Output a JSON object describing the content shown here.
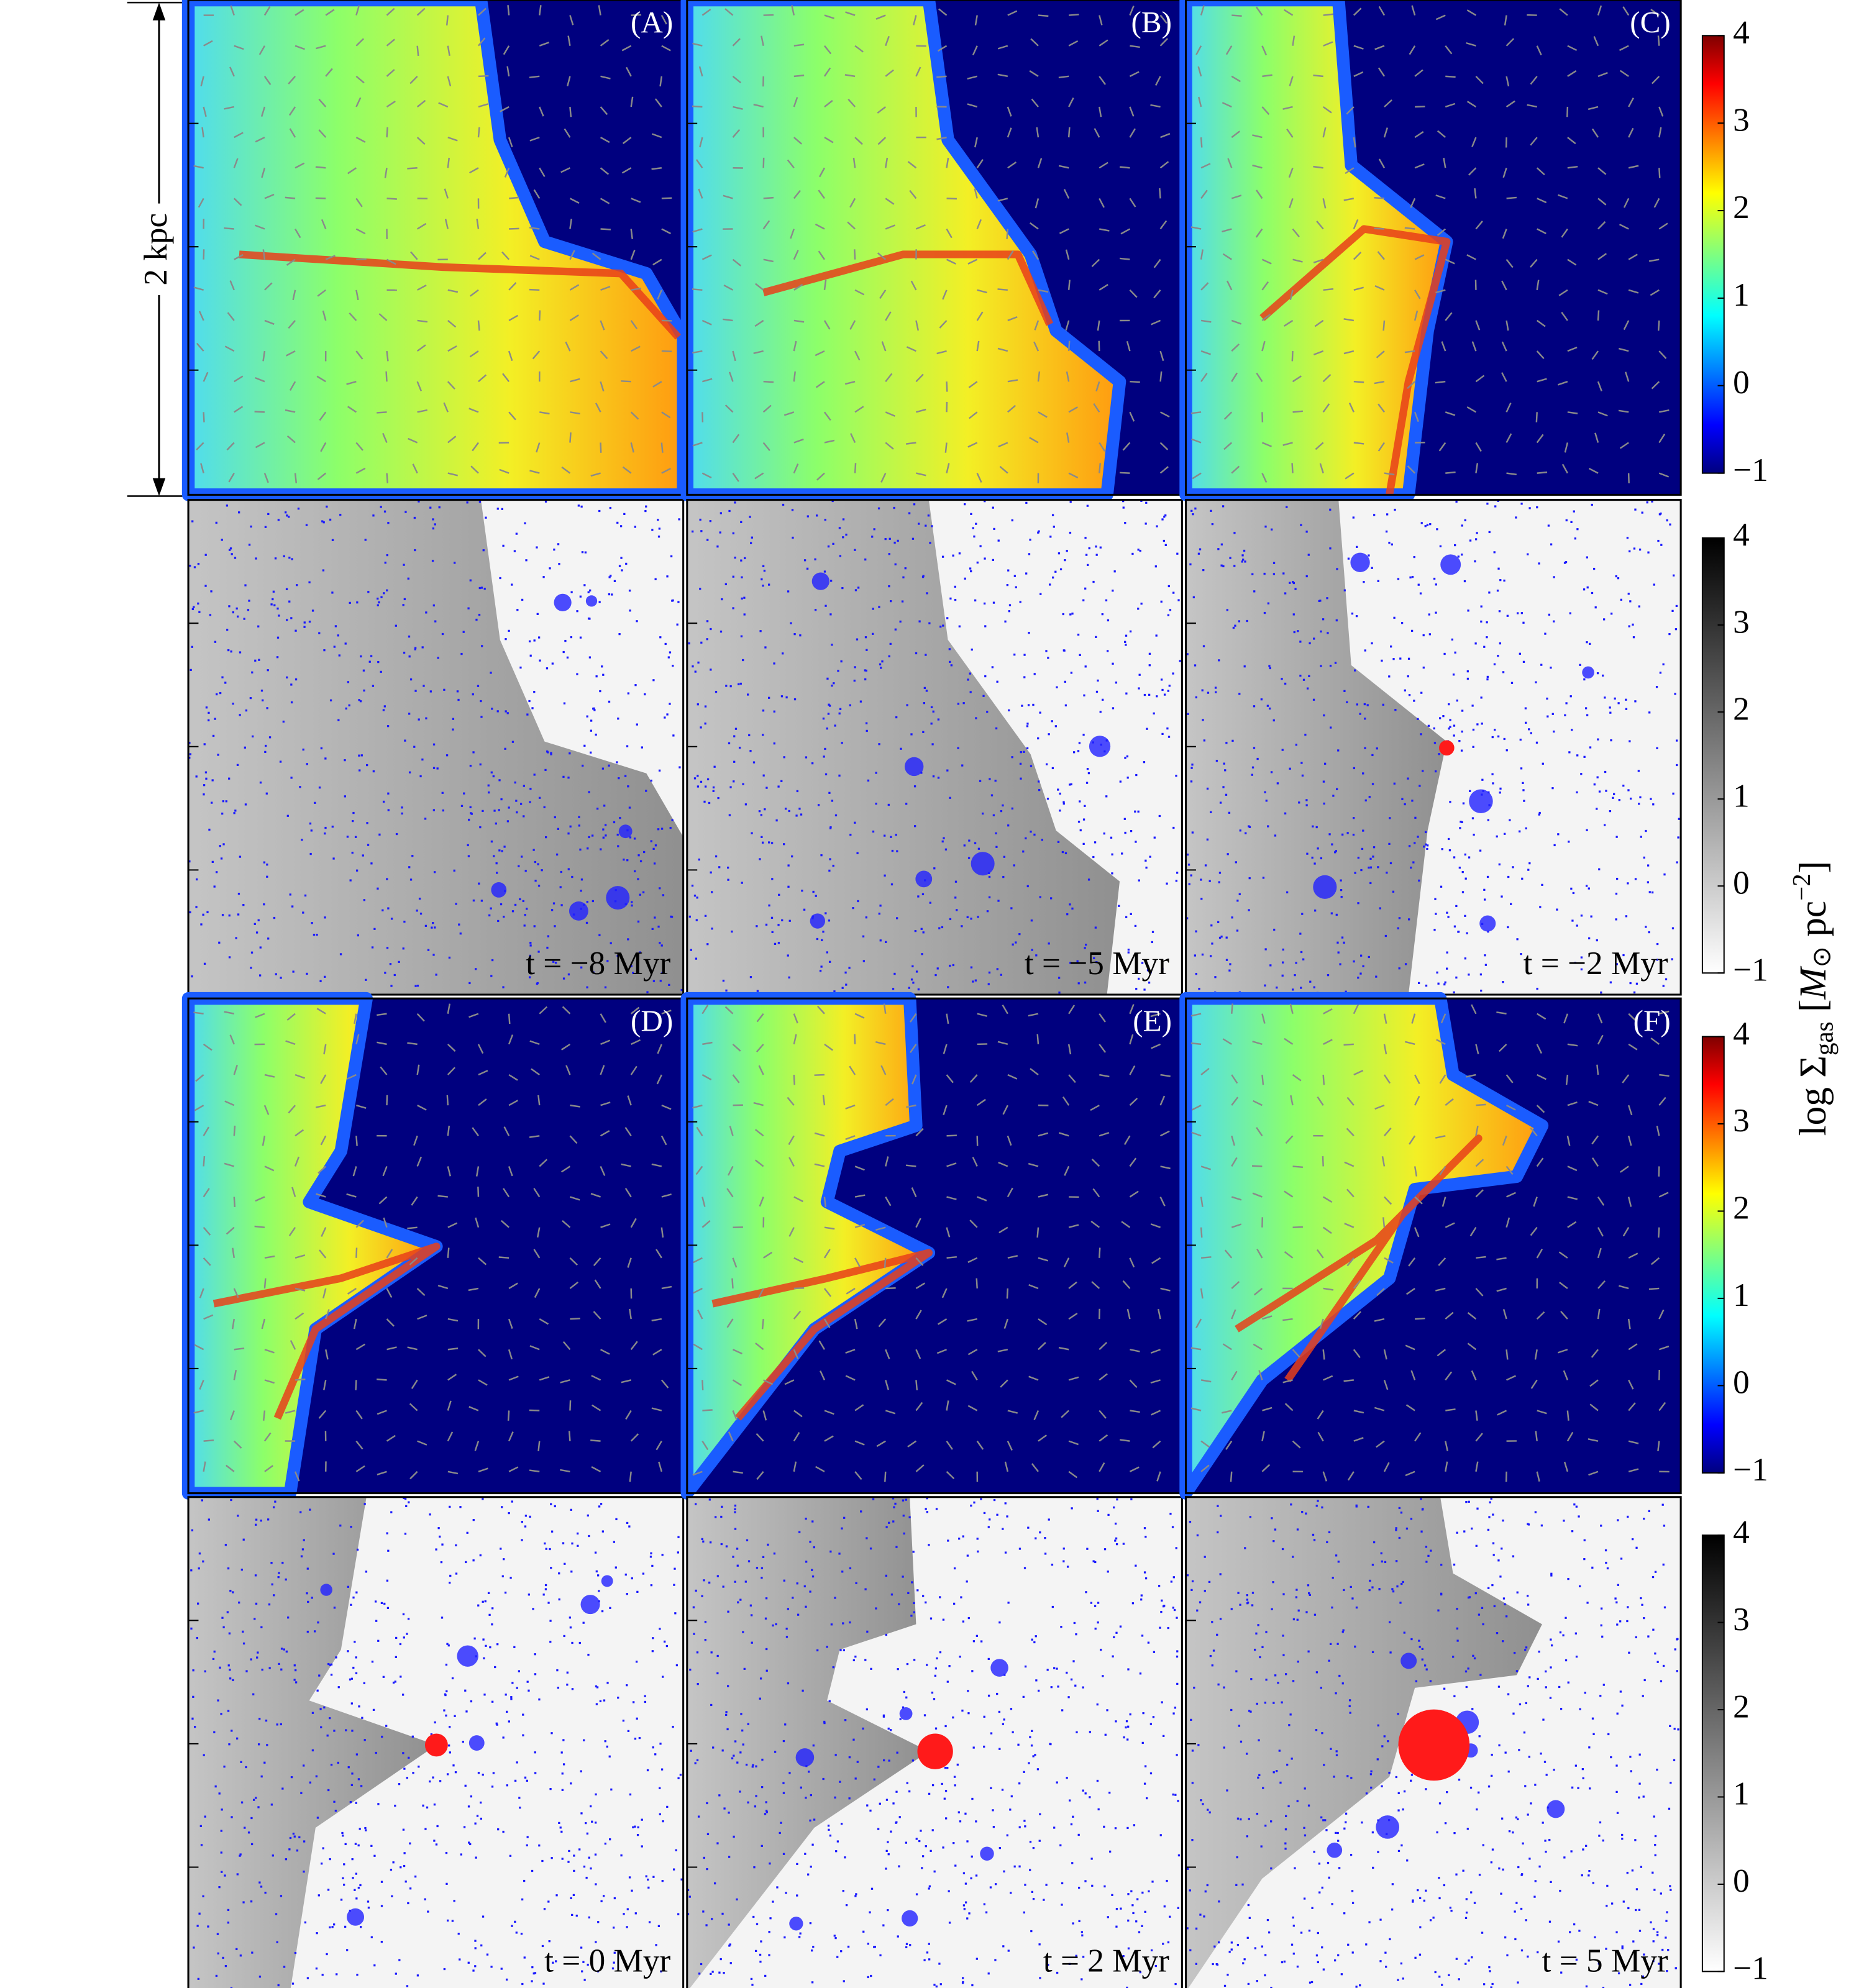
{
  "scale_bar_label": "2 kpc",
  "panels": [
    {
      "label": "(A)",
      "time": "t = −8 Myr"
    },
    {
      "label": "(B)",
      "time": "t = −5 Myr"
    },
    {
      "label": "(C)",
      "time": "t = −2 Myr"
    },
    {
      "label": "(D)",
      "time": "t = 0 Myr"
    },
    {
      "label": "(E)",
      "time": "t = 2 Myr"
    },
    {
      "label": "(F)",
      "time": "t = 5 Myr"
    }
  ],
  "colorbar": {
    "lim": [
      -1,
      4
    ],
    "ticks": [
      {
        "value": -1,
        "label": "−1"
      },
      0,
      1,
      2,
      3,
      4
    ],
    "label": [
      "log Σ",
      "gas",
      " [",
      "M",
      "⊙",
      " pc",
      "−2",
      "]"
    ]
  }
}
